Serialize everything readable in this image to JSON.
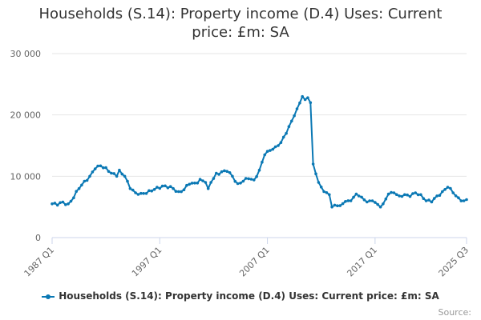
{
  "chart_data": {
    "type": "line",
    "title": "Households (S.14): Property income (D.4) Uses: Current price: £m: SA",
    "title_lines": [
      "Households (S.14): Property income (D.4) Uses: Current",
      "price: £m: SA"
    ],
    "xlabel": "",
    "ylabel": "",
    "ylim": [
      0,
      30000
    ],
    "y_ticks": [
      0,
      10000,
      20000,
      30000
    ],
    "y_tick_labels": [
      "0",
      "10 000",
      "20 000",
      "30 000"
    ],
    "x_ticks": [
      "1987 Q1",
      "1997 Q1",
      "2007 Q1",
      "2017 Q1",
      "2025 Q3"
    ],
    "grid": "horizontal",
    "legend_position": "bottom",
    "color": "#0a78b4",
    "source_label": "Source:",
    "series": [
      {
        "name": "Households (S.14): Property income (D.4) Uses: Current price: £m: SA",
        "anchors": [
          [
            "1987 Q1",
            5500
          ],
          [
            "1987 Q3",
            5300
          ],
          [
            "1988 Q1",
            5800
          ],
          [
            "1988 Q3",
            5500
          ],
          [
            "1989 Q1",
            6500
          ],
          [
            "1989 Q3",
            8000
          ],
          [
            "1990 Q1",
            9200
          ],
          [
            "1990 Q3",
            10000
          ],
          [
            "1991 Q1",
            11200
          ],
          [
            "1991 Q3",
            11700
          ],
          [
            "1992 Q1",
            11400
          ],
          [
            "1992 Q3",
            10500
          ],
          [
            "1993 Q1",
            10000
          ],
          [
            "1993 Q2",
            11000
          ],
          [
            "1993 Q4",
            10000
          ],
          [
            "1994 Q2",
            8000
          ],
          [
            "1994 Q4",
            7300
          ],
          [
            "1995 Q4",
            7200
          ],
          [
            "1996 Q2",
            7600
          ],
          [
            "1996 Q4",
            8200
          ],
          [
            "1997 Q2",
            8400
          ],
          [
            "1998 Q2",
            8000
          ],
          [
            "1998 Q4",
            7500
          ],
          [
            "1999 Q2",
            7800
          ],
          [
            "1999 Q4",
            8700
          ],
          [
            "2000 Q2",
            8900
          ],
          [
            "2000 Q4",
            9500
          ],
          [
            "2001 Q2",
            9000
          ],
          [
            "2001 Q3",
            8000
          ],
          [
            "2001 Q4",
            9000
          ],
          [
            "2002 Q2",
            10500
          ],
          [
            "2003 Q2",
            10800
          ],
          [
            "2003 Q4",
            10000
          ],
          [
            "2004 Q2",
            8800
          ],
          [
            "2004 Q4",
            9200
          ],
          [
            "2005 Q2",
            9600
          ],
          [
            "2005 Q4",
            9400
          ],
          [
            "2006 Q2",
            11000
          ],
          [
            "2006 Q4",
            13500
          ],
          [
            "2007 Q2",
            14200
          ],
          [
            "2007 Q4",
            14800
          ],
          [
            "2008 Q2",
            15500
          ],
          [
            "2008 Q4",
            17000
          ],
          [
            "2009 Q2",
            19000
          ],
          [
            "2009 Q4",
            21000
          ],
          [
            "2010 Q2",
            23000
          ],
          [
            "2010 Q3",
            22500
          ],
          [
            "2010 Q4",
            22800
          ],
          [
            "2011 Q1",
            22000
          ],
          [
            "2011 Q2",
            12000
          ],
          [
            "2011 Q4",
            9000
          ],
          [
            "2012 Q2",
            7500
          ],
          [
            "2012 Q4",
            7000
          ],
          [
            "2013 Q1",
            5000
          ],
          [
            "2013 Q2",
            5300
          ],
          [
            "2013 Q4",
            5200
          ],
          [
            "2014 Q2",
            5900
          ],
          [
            "2014 Q4",
            6000
          ],
          [
            "2015 Q2",
            7100
          ],
          [
            "2015 Q4",
            6600
          ],
          [
            "2016 Q2",
            5800
          ],
          [
            "2016 Q4",
            6000
          ],
          [
            "2017 Q2",
            5400
          ],
          [
            "2017 Q3",
            5000
          ],
          [
            "2017 Q4",
            5500
          ],
          [
            "2018 Q2",
            7100
          ],
          [
            "2018 Q4",
            7300
          ],
          [
            "2019 Q2",
            6800
          ],
          [
            "2019 Q4",
            7000
          ],
          [
            "2020 Q2",
            6700
          ],
          [
            "2020 Q4",
            7300
          ],
          [
            "2021 Q2",
            7000
          ],
          [
            "2021 Q4",
            6000
          ],
          [
            "2022 Q2",
            5800
          ],
          [
            "2022 Q4",
            6800
          ],
          [
            "2023 Q2",
            7500
          ],
          [
            "2023 Q4",
            8200
          ],
          [
            "2024 Q2",
            7300
          ],
          [
            "2024 Q4",
            6500
          ],
          [
            "2025 Q2",
            6000
          ],
          [
            "2025 Q3",
            6200
          ]
        ]
      }
    ]
  }
}
